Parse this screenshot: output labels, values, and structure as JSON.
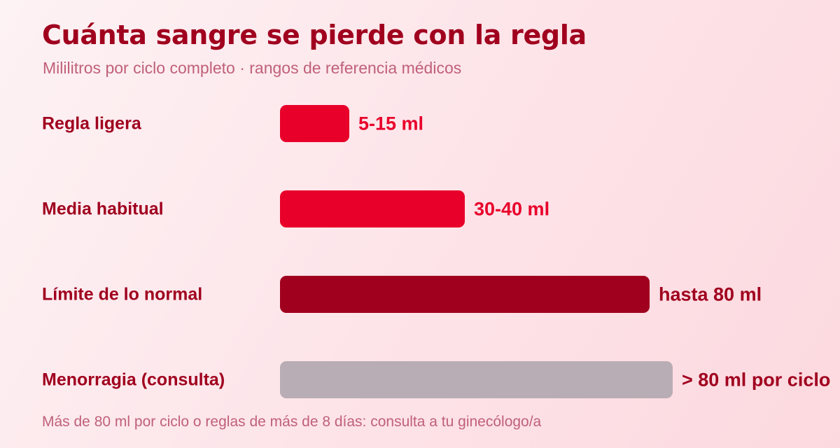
{
  "header": {
    "title": "Cuánta sangre se pierde con la regla",
    "subtitle": "Mililitros por ciclo completo · rangos de referencia médicos"
  },
  "footnote": "Más de 80 ml por ciclo o reglas de más de 8 días: consulta a tu ginecólogo/a",
  "colors": {
    "bar_bright": "#e8002a",
    "bar_dark": "#a0001e",
    "bar_gray": "#b8adb4",
    "label": "#a0001e",
    "value_bright": "#e8002a",
    "value_dark": "#a0001e"
  },
  "chart_data": {
    "type": "bar",
    "orientation": "horizontal",
    "unit": "ml",
    "xlim": [
      0,
      85
    ],
    "categories": [
      "Regla ligera",
      "Media habitual",
      "Límite de lo normal",
      "Menorragia (consulta)"
    ],
    "values": [
      15,
      40,
      80,
      85
    ],
    "value_labels": [
      "5-15 ml",
      "30-40 ml",
      "hasta 80 ml",
      "> 80 ml por ciclo"
    ],
    "bar_colors": [
      "#e8002a",
      "#e8002a",
      "#a0001e",
      "#b8adb4"
    ],
    "value_label_colors": [
      "#e8002a",
      "#e8002a",
      "#a0001e",
      "#a0001e"
    ],
    "grid": false,
    "legend": "none"
  }
}
